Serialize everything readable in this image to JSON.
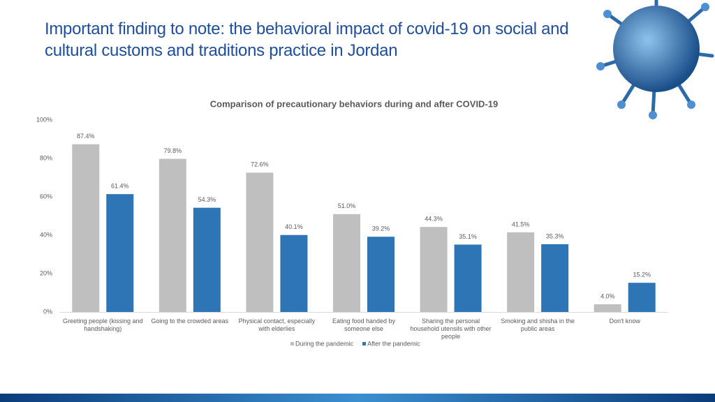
{
  "header": {
    "title": "Important finding to note: the behavioral impact of covid-19 on social and cultural customs and traditions practice in Jordan"
  },
  "chart_data": {
    "type": "bar",
    "title": "Comparison of precautionary behaviors during and after COVID-19",
    "categories": [
      "Greeting people (kissing and handshaking)",
      "Going to the crowded areas",
      "Physical contact, especially with elderlies",
      "Eating food handed by someone else",
      "Sharing the personal household utensils with other people",
      "Smoking and shisha in the public areas",
      "Don't know"
    ],
    "series": [
      {
        "name": "During the pandemic",
        "color": "#bfbfbf",
        "values": [
          87.4,
          79.8,
          72.6,
          51.0,
          44.3,
          41.5,
          4.0
        ],
        "value_labels": [
          "87.4%",
          "79.8%",
          "72.6%",
          "51.0%",
          "44.3%",
          "41.5%",
          "4.0%"
        ]
      },
      {
        "name": "After the pandemic",
        "color": "#2e75b6",
        "values": [
          61.4,
          54.3,
          40.1,
          39.2,
          35.1,
          35.3,
          15.2
        ],
        "value_labels": [
          "61.4%",
          "54.3%",
          "40.1%",
          "39.2%",
          "35.1%",
          "35.3%",
          "15.2%"
        ]
      }
    ],
    "ylim": [
      0,
      100
    ],
    "yticks": [
      {
        "value": 0,
        "label": "0%"
      },
      {
        "value": 20,
        "label": "20%"
      },
      {
        "value": 40,
        "label": "40%"
      },
      {
        "value": 60,
        "label": "60%"
      },
      {
        "value": 80,
        "label": "80%"
      },
      {
        "value": 100,
        "label": "100%"
      }
    ],
    "grid": false,
    "legend": "bottom"
  }
}
